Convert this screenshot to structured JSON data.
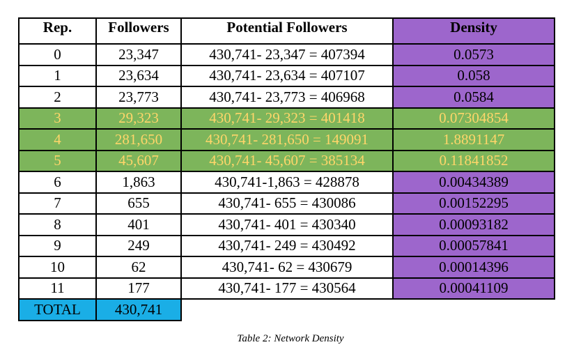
{
  "table": {
    "headers": [
      "Rep.",
      "Followers",
      "Potential Followers",
      "Density"
    ],
    "rows": [
      {
        "rep": "0",
        "followers": "23,347",
        "potential": "430,741- 23,347 = 407394",
        "density": "0.0573",
        "highlight": false
      },
      {
        "rep": "1",
        "followers": "23,634",
        "potential": "430,741- 23,634 = 407107",
        "density": "0.058",
        "highlight": false
      },
      {
        "rep": "2",
        "followers": "23,773",
        "potential": "430,741- 23,773 = 406968",
        "density": "0.0584",
        "highlight": false
      },
      {
        "rep": "3",
        "followers": "29,323",
        "potential": "430,741- 29,323 = 401418",
        "density": "0.07304854",
        "highlight": true
      },
      {
        "rep": "4",
        "followers": "281,650",
        "potential": "430,741- 281,650 = 149091",
        "density": "1.8891147",
        "highlight": true
      },
      {
        "rep": "5",
        "followers": "45,607",
        "potential": "430,741- 45,607 = 385134",
        "density": "0.11841852",
        "highlight": true
      },
      {
        "rep": "6",
        "followers": "1,863",
        "potential": "430,741-1,863 = 428878",
        "density": "0.00434389",
        "highlight": false
      },
      {
        "rep": "7",
        "followers": "655",
        "potential": "430,741- 655 = 430086",
        "density": "0.00152295",
        "highlight": false
      },
      {
        "rep": "8",
        "followers": "401",
        "potential": "430,741- 401 = 430340",
        "density": "0.00093182",
        "highlight": false
      },
      {
        "rep": "9",
        "followers": "249",
        "potential": "430,741- 249 = 430492",
        "density": "0.00057841",
        "highlight": false
      },
      {
        "rep": "10",
        "followers": "62",
        "potential": "430,741- 62 = 430679",
        "density": "0.00014396",
        "highlight": false
      },
      {
        "rep": "11",
        "followers": "177",
        "potential": "430,741- 177 = 430564",
        "density": "0.00041109",
        "highlight": false
      }
    ],
    "total": {
      "label": "TOTAL",
      "value": "430,741"
    }
  },
  "caption": "Table 2: Network Density",
  "colors": {
    "density_column": "#9d66cc",
    "highlight_row": "#7db55b",
    "highlight_text": "#ffd66a",
    "total_row": "#1aaee6"
  }
}
